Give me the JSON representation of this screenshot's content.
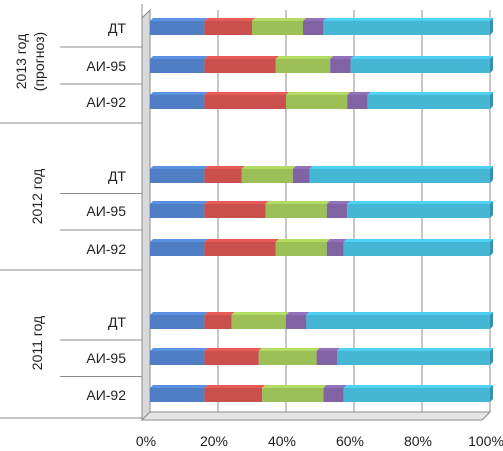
{
  "chart_data": {
    "type": "bar",
    "orientation": "horizontal",
    "stacked": "percent",
    "x_ticks": [
      "0%",
      "20%",
      "40%",
      "60%",
      "80%",
      "100%"
    ],
    "xlim": [
      0,
      100
    ],
    "grid": true,
    "legend": "none",
    "colors": [
      "#4f7ec4",
      "#c9504c",
      "#9cbf57",
      "#7f63a3",
      "#45b6d4"
    ],
    "groups": [
      {
        "label": "2013 год\n(прогноз)",
        "rows": [
          {
            "label": "ДТ",
            "values": [
              16,
              14,
              15,
              6,
              49
            ]
          },
          {
            "label": "АИ-95",
            "values": [
              16,
              21,
              16,
              6,
              41
            ]
          },
          {
            "label": "АИ-92",
            "values": [
              16,
              24,
              18,
              6,
              36
            ]
          }
        ]
      },
      {
        "label": "2012 год",
        "rows": [
          {
            "label": "ДТ",
            "values": [
              16,
              11,
              15,
              5,
              53
            ]
          },
          {
            "label": "АИ-95",
            "values": [
              16,
              18,
              18,
              6,
              42
            ]
          },
          {
            "label": "АИ-92",
            "values": [
              16,
              21,
              15,
              5,
              43
            ]
          }
        ]
      },
      {
        "label": "2011 год",
        "rows": [
          {
            "label": "ДТ",
            "values": [
              16,
              8,
              16,
              6,
              54
            ]
          },
          {
            "label": "АИ-95",
            "values": [
              16,
              16,
              17,
              6,
              45
            ]
          },
          {
            "label": "АИ-92",
            "values": [
              16,
              17,
              18,
              6,
              43
            ]
          }
        ]
      }
    ]
  }
}
